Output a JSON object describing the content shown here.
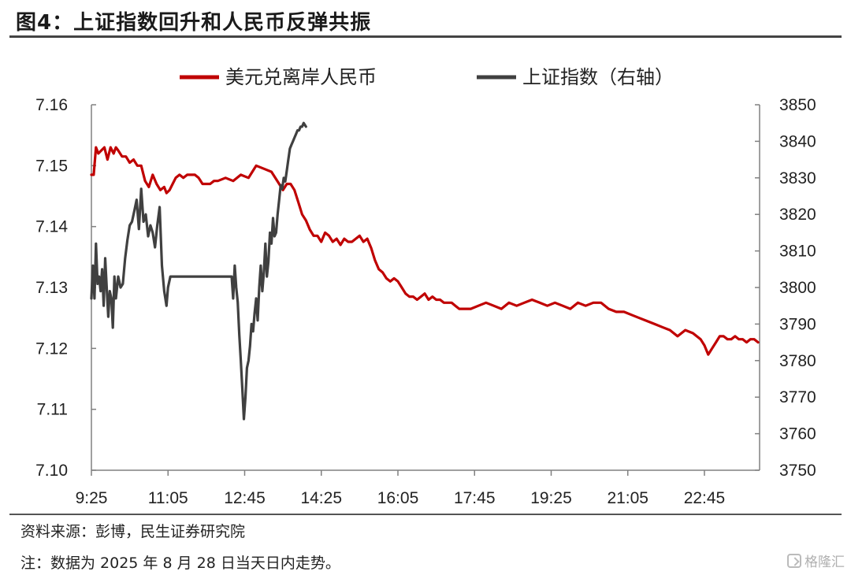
{
  "title": "图4：上证指数回升和人民币反弹共振",
  "footer": {
    "source": "资料来源：彭博，民生证券研究院",
    "note": "注：数据为 2025 年 8 月 28 日当天日内走势。",
    "watermark": "格隆汇"
  },
  "colors": {
    "cnh": "#c00000",
    "sh": "#404040",
    "axis": "#808080"
  },
  "chart_data": {
    "type": "line",
    "x_tick_labels": [
      "9:25",
      "11:05",
      "12:45",
      "14:25",
      "16:05",
      "17:45",
      "19:25",
      "21:05",
      "22:45"
    ],
    "x_unit": "minutes since midnight",
    "x_range": [
      565,
      1437
    ],
    "y_left": {
      "ticks": [
        "7.10",
        "7.11",
        "7.12",
        "7.13",
        "7.14",
        "7.15",
        "7.16"
      ],
      "range": [
        7.1,
        7.16
      ]
    },
    "y_right": {
      "ticks": [
        "3750",
        "3760",
        "3770",
        "3780",
        "3790",
        "3800",
        "3810",
        "3820",
        "3830",
        "3840",
        "3850"
      ],
      "range": [
        3750,
        3850
      ]
    },
    "legend_position": "top-center",
    "series": [
      {
        "name": "美元兑离岸人民币",
        "axis": "left",
        "x": [
          565,
          568,
          571,
          574,
          578,
          582,
          586,
          590,
          594,
          597,
          600,
          605,
          610,
          615,
          620,
          625,
          630,
          635,
          640,
          645,
          650,
          655,
          660,
          663,
          667,
          671,
          675,
          680,
          685,
          690,
          695,
          700,
          705,
          710,
          715,
          720,
          725,
          730,
          740,
          750,
          760,
          770,
          775,
          780,
          790,
          800,
          810,
          815,
          820,
          825,
          830,
          835,
          840,
          845,
          850,
          855,
          860,
          865,
          870,
          875,
          880,
          885,
          890,
          895,
          900,
          905,
          910,
          915,
          920,
          925,
          930,
          935,
          940,
          945,
          950,
          955,
          960,
          965,
          970,
          975,
          980,
          985,
          990,
          995,
          1000,
          1005,
          1010,
          1015,
          1020,
          1025,
          1030,
          1035,
          1040,
          1045,
          1050,
          1060,
          1070,
          1080,
          1090,
          1100,
          1110,
          1120,
          1130,
          1140,
          1150,
          1160,
          1170,
          1180,
          1190,
          1200,
          1210,
          1220,
          1230,
          1240,
          1250,
          1260,
          1270,
          1280,
          1290,
          1300,
          1310,
          1320,
          1330,
          1340,
          1350,
          1360,
          1365,
          1370,
          1375,
          1380,
          1385,
          1390,
          1395,
          1400,
          1405,
          1410,
          1415,
          1420,
          1425,
          1430,
          1435
        ],
        "y": [
          7.1485,
          7.1485,
          7.153,
          7.152,
          7.1525,
          7.153,
          7.151,
          7.153,
          7.152,
          7.153,
          7.1525,
          7.1515,
          7.1515,
          7.1505,
          7.151,
          7.15,
          7.15,
          7.1475,
          7.1465,
          7.1485,
          7.147,
          7.146,
          7.1465,
          7.1455,
          7.146,
          7.147,
          7.148,
          7.1485,
          7.148,
          7.1485,
          7.1485,
          7.1485,
          7.148,
          7.147,
          7.147,
          7.147,
          7.1475,
          7.1475,
          7.148,
          7.1475,
          7.1485,
          7.148,
          7.149,
          7.15,
          7.1495,
          7.149,
          7.147,
          7.146,
          7.147,
          7.147,
          7.146,
          7.144,
          7.142,
          7.141,
          7.1395,
          7.1385,
          7.1385,
          7.1375,
          7.139,
          7.1385,
          7.1375,
          7.138,
          7.137,
          7.138,
          7.1375,
          7.1375,
          7.138,
          7.1385,
          7.1375,
          7.138,
          7.1365,
          7.1345,
          7.133,
          7.1325,
          7.1315,
          7.131,
          7.1315,
          7.131,
          7.13,
          7.129,
          7.1285,
          7.1285,
          7.128,
          7.1285,
          7.129,
          7.128,
          7.1285,
          7.128,
          7.128,
          7.1275,
          7.1275,
          7.1275,
          7.127,
          7.1265,
          7.1265,
          7.1265,
          7.127,
          7.1275,
          7.127,
          7.1265,
          7.1275,
          7.127,
          7.1275,
          7.128,
          7.1275,
          7.127,
          7.1275,
          7.127,
          7.1265,
          7.1275,
          7.127,
          7.1275,
          7.1275,
          7.1265,
          7.126,
          7.126,
          7.1255,
          7.125,
          7.1245,
          7.124,
          7.1235,
          7.123,
          7.122,
          7.123,
          7.1225,
          7.1215,
          7.1205,
          7.119,
          7.12,
          7.121,
          7.122,
          7.122,
          7.1215,
          7.1215,
          7.122,
          7.1215,
          7.1215,
          7.121,
          7.1215,
          7.1215,
          7.121
        ]
      },
      {
        "name": "上证指数（右轴）",
        "axis": "right",
        "x": [
          565,
          567,
          569,
          571,
          573,
          575,
          577,
          579,
          581,
          583,
          585,
          587,
          589,
          591,
          593,
          595,
          597,
          600,
          603,
          606,
          609,
          612,
          615,
          618,
          621,
          624,
          627,
          630,
          633,
          636,
          639,
          642,
          645,
          648,
          651,
          654,
          657,
          660,
          663,
          665,
          668,
          671,
          675,
          680,
          690,
          700,
          710,
          720,
          730,
          740,
          745,
          748,
          750,
          752,
          754,
          756,
          758,
          760,
          762,
          764,
          766,
          768,
          770,
          772,
          774,
          776,
          778,
          780,
          782,
          784,
          786,
          788,
          790,
          792,
          794,
          796,
          798,
          800,
          802,
          804,
          806,
          808,
          810,
          812,
          814,
          816,
          818,
          820,
          822,
          824,
          826,
          828,
          830,
          832,
          834,
          836,
          838,
          840,
          842,
          845
        ],
        "y": [
          3797,
          3806,
          3797,
          3812,
          3801,
          3803,
          3799,
          3805,
          3795,
          3808,
          3800,
          3792,
          3799,
          3797,
          3789,
          3803,
          3797,
          3803,
          3800,
          3801,
          3808,
          3813,
          3817,
          3818,
          3821,
          3824,
          3816,
          3827,
          3818,
          3820,
          3814,
          3817,
          3815,
          3811,
          3817,
          3822,
          3806,
          3799,
          3795,
          3800,
          3803,
          3803,
          3803,
          3803,
          3803,
          3803,
          3803,
          3803,
          3803,
          3803,
          3803,
          3803,
          3797,
          3806,
          3800,
          3796,
          3787,
          3780,
          3772,
          3764,
          3770,
          3778,
          3780,
          3784,
          3790,
          3788,
          3793,
          3797,
          3791,
          3800,
          3806,
          3799,
          3804,
          3812,
          3803,
          3807,
          3815,
          3812,
          3819,
          3814,
          3815,
          3820,
          3824,
          3828,
          3827,
          3830,
          3829,
          3832,
          3835,
          3838,
          3839,
          3840,
          3841,
          3842,
          3843,
          3843,
          3844,
          3844,
          3845,
          3844
        ]
      }
    ]
  }
}
